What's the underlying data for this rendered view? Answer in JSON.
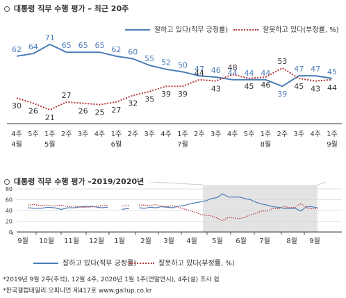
{
  "top": {
    "title": "대통령 직무 수행 평가 – 최근 20주",
    "legend_approve": "잘하고 있다(직무 긍정률)",
    "legend_disapprove": "잘못하고 있다(부정률, %)"
  },
  "bottom": {
    "title": "대통령 직무 수행 평가 –2019/2020년",
    "legend_approve": "잘하고 있다(직무 긍정률)",
    "legend_disapprove": "잘못하고 있다(부정률, %)"
  },
  "footnotes": [
    "*2019년 9월 2주(추석), 12월 4주, 2020년 1월 1주(연말연시), 4주(설)  조사 쉼",
    "*한국갤럽데일리 오피니언 제417호 www.gallup.co.kr"
  ],
  "colors": {
    "approve": "#4a7bb7",
    "disapprove": "#b2373a",
    "highlight": "#e3e3e3"
  },
  "chart_data": [
    {
      "type": "line",
      "title": "대통령 직무 수행 평가 – 최근 20주",
      "categories": [
        "4주\n4월",
        "5주",
        "1주\n5월",
        "2주",
        "3주",
        "4주",
        "1주\n6월",
        "2주",
        "3주",
        "4주",
        "1주\n7월",
        "2주",
        "3주",
        "4주",
        "5주",
        "1주\n8월",
        "2주",
        "3주",
        "4주",
        "1주\n9월"
      ],
      "series": [
        {
          "name": "잘하고 있다(직무 긍정률)",
          "values": [
            62,
            64,
            71,
            65,
            65,
            65,
            62,
            60,
            55,
            52,
            50,
            47,
            46,
            44,
            44,
            44,
            39,
            47,
            47,
            45
          ]
        },
        {
          "name": "잘못하고 있다(부정률, %)",
          "values": [
            30,
            26,
            21,
            27,
            26,
            25,
            27,
            32,
            35,
            39,
            39,
            44,
            43,
            48,
            45,
            46,
            53,
            45,
            43,
            44
          ]
        }
      ],
      "ylim": [
        0,
        100
      ],
      "grid": false
    },
    {
      "type": "line",
      "title": "대통령 직무 수행 평가 –2019/2020년",
      "xticks": [
        "9월",
        "10월",
        "11월",
        "12월",
        "1월",
        "2월",
        "3월",
        "4월",
        "5월",
        "6월",
        "7월",
        "8월",
        "9월"
      ],
      "yticks": [
        0,
        20,
        40,
        60,
        80
      ],
      "ylim": [
        0,
        80
      ],
      "grid": true,
      "highlight": "최근 20주",
      "series": [
        {
          "name": "잘하고 있다(직무 긍정률)",
          "segments": [
            [
              45,
              44,
              44,
              46,
              45,
              42,
              45,
              45,
              47,
              48,
              47,
              45,
              46
            ],
            [
              42,
              44
            ],
            [
              45,
              44,
              46,
              45,
              47,
              46,
              45,
              48,
              49,
              52,
              54,
              56,
              58,
              62,
              64,
              71,
              65,
              65,
              65,
              62,
              60,
              55,
              52,
              50,
              47,
              46,
              44,
              44,
              44,
              39,
              47,
              47,
              45
            ]
          ]
        },
        {
          "name": "잘못하고 있다(부정률, %)",
          "segments": [
            [
              50,
              51,
              49,
              50,
              48,
              50,
              47,
              48,
              46,
              46,
              47,
              49,
              49
            ],
            [
              48,
              50
            ],
            [
              50,
              50,
              49,
              51,
              48,
              47,
              49,
              46,
              43,
              40,
              37,
              33,
              31,
              30,
              26,
              21,
              27,
              26,
              25,
              27,
              32,
              35,
              39,
              39,
              44,
              43,
              48,
              45,
              46,
              53,
              45,
              43,
              44
            ]
          ]
        }
      ]
    }
  ]
}
